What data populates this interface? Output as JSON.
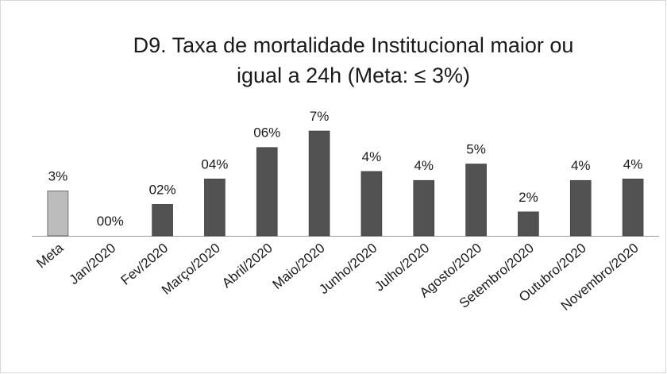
{
  "chart_data": {
    "type": "bar",
    "title": [
      "D9. Taxa de mortalidade Institucional maior ou",
      "igual a 24h  (Meta: ≤ 3%)"
    ],
    "categories": [
      "Meta",
      "Jan/2020",
      "Fev/2020",
      "Março/2020",
      "Abril/2020",
      "Maio/2020",
      "Junho/2020",
      "Julho/2020",
      "Agosto/2020",
      "Setembro/2020",
      "Outubro/2020",
      "Novembro/2020"
    ],
    "values": [
      3.0,
      0,
      2.1,
      3.8,
      5.9,
      7.0,
      4.3,
      3.7,
      4.8,
      1.6,
      3.7,
      3.8
    ],
    "value_labels": [
      "3%",
      "00%",
      "02%",
      "04%",
      "06%",
      "7%",
      "4%",
      "4%",
      "5%",
      "2%",
      "4%",
      "4%"
    ],
    "colors": [
      "#bcbcbc",
      "#525252",
      "#525252",
      "#525252",
      "#525252",
      "#525252",
      "#525252",
      "#525252",
      "#525252",
      "#525252",
      "#525252",
      "#525252"
    ]
  }
}
